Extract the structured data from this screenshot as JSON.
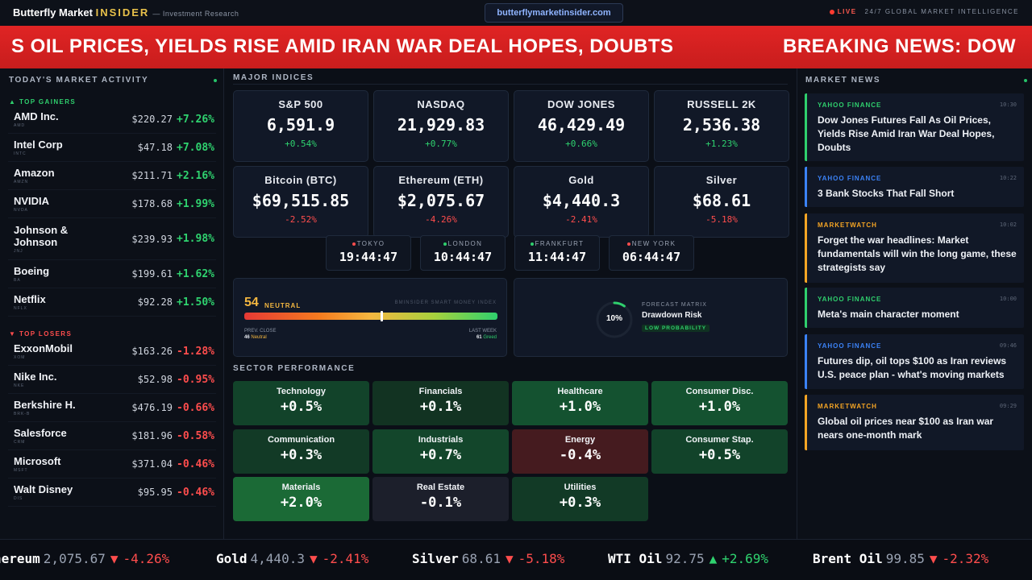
{
  "header": {
    "brand_main": "Butterfly Market ",
    "brand_accent": "INSIDER",
    "brand_sub": "— Investment Research",
    "url": "butterflymarketinsider.com",
    "live_label": "LIVE",
    "live_tagline": "24/7 GLOBAL MARKET INTELLIGENCE"
  },
  "banner": {
    "text_left": "S OIL PRICES, YIELDS RISE AMID IRAN WAR DEAL HOPES, DOUBTS",
    "text_right": "BREAKING NEWS: DOW"
  },
  "activity": {
    "title": "TODAY'S MARKET ACTIVITY",
    "gainers_label": "▲ TOP GAINERS",
    "losers_label": "▼ TOP LOSERS",
    "gainers": [
      {
        "name": "AMD Inc.",
        "ticker": "AMD",
        "price": "$220.27",
        "change": "+7.26%"
      },
      {
        "name": "Intel Corp",
        "ticker": "INTC",
        "price": "$47.18",
        "change": "+7.08%"
      },
      {
        "name": "Amazon",
        "ticker": "AMZN",
        "price": "$211.71",
        "change": "+2.16%"
      },
      {
        "name": "NVIDIA",
        "ticker": "NVDA",
        "price": "$178.68",
        "change": "+1.99%"
      },
      {
        "name": "Johnson & Johnson",
        "ticker": "JNJ",
        "price": "$239.93",
        "change": "+1.98%"
      },
      {
        "name": "Boeing",
        "ticker": "BA",
        "price": "$199.61",
        "change": "+1.62%"
      },
      {
        "name": "Netflix",
        "ticker": "NFLX",
        "price": "$92.28",
        "change": "+1.50%"
      }
    ],
    "losers": [
      {
        "name": "ExxonMobil",
        "ticker": "XOM",
        "price": "$163.26",
        "change": "-1.28%"
      },
      {
        "name": "Nike Inc.",
        "ticker": "NKE",
        "price": "$52.98",
        "change": "-0.95%"
      },
      {
        "name": "Berkshire H.",
        "ticker": "BRK-B",
        "price": "$476.19",
        "change": "-0.66%"
      },
      {
        "name": "Salesforce",
        "ticker": "CRM",
        "price": "$181.96",
        "change": "-0.58%"
      },
      {
        "name": "Microsoft",
        "ticker": "MSFT",
        "price": "$371.04",
        "change": "-0.46%"
      },
      {
        "name": "Walt Disney",
        "ticker": "DIS",
        "price": "$95.95",
        "change": "-0.46%"
      }
    ]
  },
  "indices": {
    "title": "MAJOR INDICES",
    "cards": [
      {
        "name": "S&P 500",
        "value": "6,591.9",
        "change": "+0.54%",
        "dir": "up"
      },
      {
        "name": "NASDAQ",
        "value": "21,929.83",
        "change": "+0.77%",
        "dir": "up"
      },
      {
        "name": "DOW JONES",
        "value": "46,429.49",
        "change": "+0.66%",
        "dir": "up"
      },
      {
        "name": "RUSSELL 2K",
        "value": "2,536.38",
        "change": "+1.23%",
        "dir": "up"
      },
      {
        "name": "Bitcoin (BTC)",
        "value": "$69,515.85",
        "change": "-2.52%",
        "dir": "down"
      },
      {
        "name": "Ethereum (ETH)",
        "value": "$2,075.67",
        "change": "-4.26%",
        "dir": "down"
      },
      {
        "name": "Gold",
        "value": "$4,440.3",
        "change": "-2.41%",
        "dir": "down"
      },
      {
        "name": "Silver",
        "value": "$68.61",
        "change": "-5.18%",
        "dir": "down"
      }
    ]
  },
  "clocks": [
    {
      "city": "TOKYO",
      "time": "19:44:47",
      "dot": "#ff4d4d"
    },
    {
      "city": "LONDON",
      "time": "10:44:47",
      "dot": "#2fcf6d"
    },
    {
      "city": "FRANKFURT",
      "time": "11:44:47",
      "dot": "#2fcf6d"
    },
    {
      "city": "NEW YORK",
      "time": "06:44:47",
      "dot": "#ff4d4d"
    }
  ],
  "fear_greed": {
    "score": "54",
    "label": "NEUTRAL",
    "index_name": "BMINSIDER SMART MONEY INDEX",
    "level": 0.54,
    "prev_label": "PREV. CLOSE",
    "prev_value": "46",
    "prev_state": "Neutral",
    "last_label": "LAST WEEK",
    "last_value": "61",
    "last_state": "Greed"
  },
  "forecast": {
    "percent": "10%",
    "level": 0.1,
    "kicker": "FORECAST MATRIX",
    "title": "Drawdown Risk",
    "badge": "LOW PROBABILITY"
  },
  "sectors": {
    "title": "SECTOR PERFORMANCE",
    "items": [
      {
        "name": "Technology",
        "value": "+0.5%",
        "color": "#12432a"
      },
      {
        "name": "Financials",
        "value": "+0.1%",
        "color": "#123322"
      },
      {
        "name": "Healthcare",
        "value": "+1.0%",
        "color": "#145230"
      },
      {
        "name": "Consumer Disc.",
        "value": "+1.0%",
        "color": "#145230"
      },
      {
        "name": "Communication",
        "value": "+0.3%",
        "color": "#123a26"
      },
      {
        "name": "Industrials",
        "value": "+0.7%",
        "color": "#13462b"
      },
      {
        "name": "Energy",
        "value": "-0.4%",
        "color": "#451b1f"
      },
      {
        "name": "Consumer Stap.",
        "value": "+0.5%",
        "color": "#12432a"
      },
      {
        "name": "Materials",
        "value": "+2.0%",
        "color": "#1b6a36"
      },
      {
        "name": "Real Estate",
        "value": "-0.1%",
        "color": "#1c1f2b"
      },
      {
        "name": "Utilities",
        "value": "+0.3%",
        "color": "#123a26"
      }
    ]
  },
  "news": {
    "title": "MARKET NEWS",
    "items": [
      {
        "source": "YAHOO FINANCE",
        "time": "10:30",
        "headline": "Dow Jones Futures Fall As Oil Prices, Yields Rise Amid Iran War Deal Hopes, Doubts",
        "color": "#2fcf6d"
      },
      {
        "source": "YAHOO FINANCE",
        "time": "10:22",
        "headline": "3 Bank Stocks That Fall Short",
        "color": "#3b82f6"
      },
      {
        "source": "MARKETWATCH",
        "time": "10:02",
        "headline": "Forget the war headlines: Market fundamentals will win the long game, these strategists say",
        "color": "#f5a524"
      },
      {
        "source": "YAHOO FINANCE",
        "time": "10:00",
        "headline": "Meta's main character moment",
        "color": "#2fcf6d"
      },
      {
        "source": "YAHOO FINANCE",
        "time": "09:46",
        "headline": "Futures dip, oil tops $100 as Iran reviews U.S. peace plan - what's moving markets",
        "color": "#3b82f6"
      },
      {
        "source": "MARKETWATCH",
        "time": "09:29",
        "headline": "Global oil prices near $100 as Iran war nears one-month mark",
        "color": "#f5a524"
      }
    ]
  },
  "ticker": [
    {
      "name": "hereum",
      "value": "2,075.67",
      "arrow": "▼",
      "change": "-4.26%",
      "dir": "down"
    },
    {
      "name": "Gold",
      "value": "4,440.3",
      "arrow": "▼",
      "change": "-2.41%",
      "dir": "down"
    },
    {
      "name": "Silver",
      "value": "68.61",
      "arrow": "▼",
      "change": "-5.18%",
      "dir": "down"
    },
    {
      "name": "WTI Oil",
      "value": "92.75",
      "arrow": "▲",
      "change": "+2.69%",
      "dir": "up"
    },
    {
      "name": "Brent Oil",
      "value": "99.85",
      "arrow": "▼",
      "change": "-2.32%",
      "dir": "down"
    }
  ]
}
